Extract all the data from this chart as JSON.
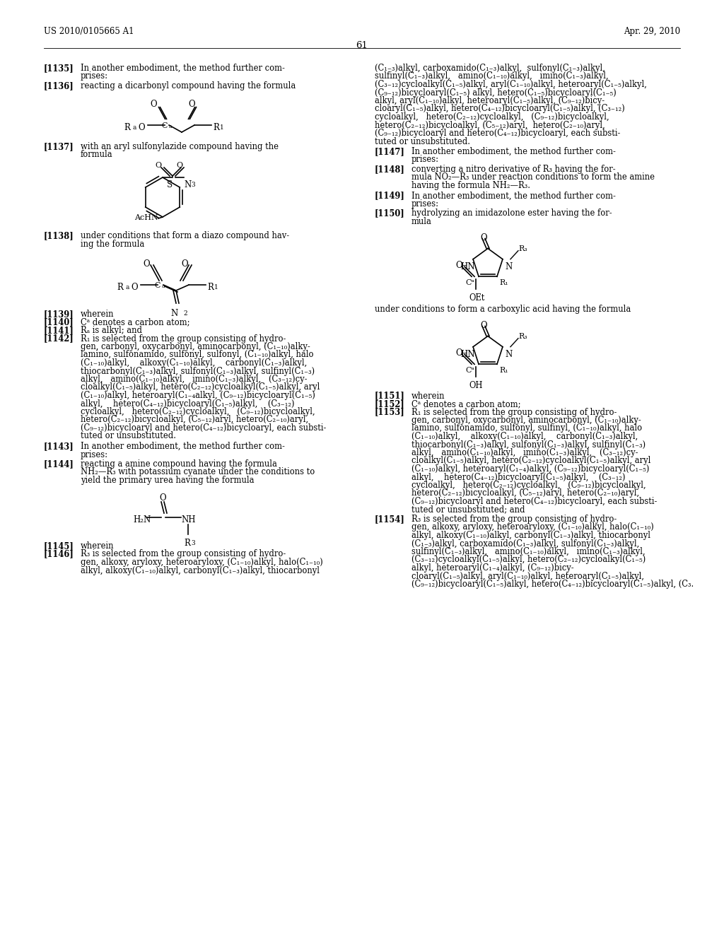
{
  "bg": "#ffffff",
  "header_left": "US 2010/0105665 A1",
  "header_right": "Apr. 29, 2010",
  "page_num": "61"
}
